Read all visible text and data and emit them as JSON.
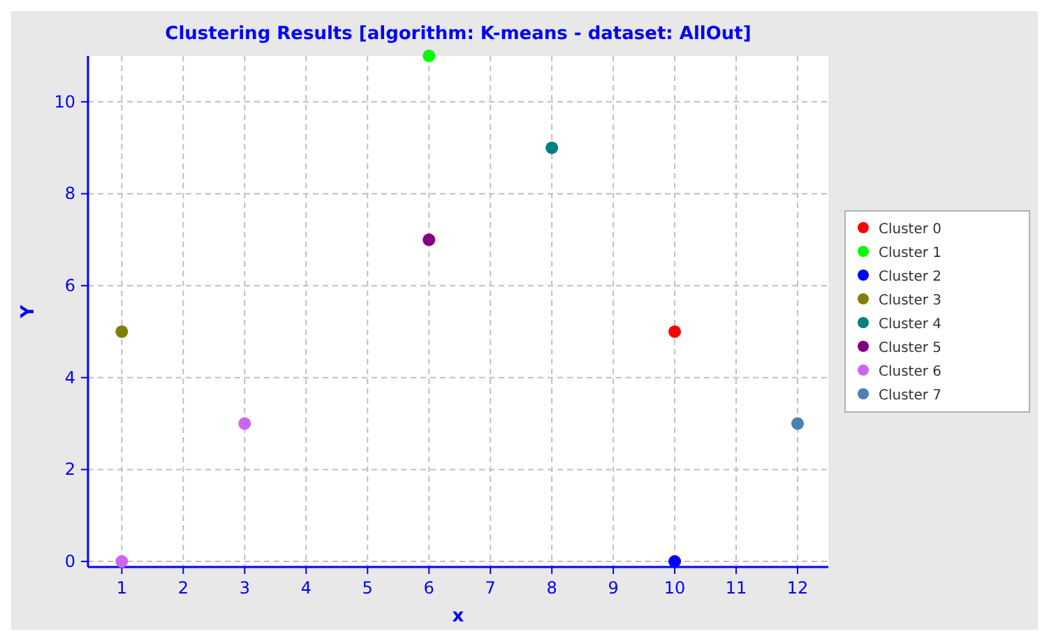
{
  "chart_data": {
    "type": "scatter",
    "title": "Clustering Results [algorithm: K-means - dataset: AllOut]",
    "xlabel": "x",
    "ylabel": "Y",
    "xlim": [
      0.45,
      12.5
    ],
    "xticks": [
      1,
      2,
      3,
      4,
      5,
      6,
      7,
      8,
      9,
      10,
      11,
      12
    ],
    "ylim": [
      -0.12,
      11
    ],
    "yticks": [
      0,
      2,
      4,
      6,
      8,
      10
    ],
    "grid": true,
    "legend": "right",
    "marker": "circle",
    "series": [
      {
        "name": "Cluster 0",
        "color": "#ff0000",
        "x": [
          10
        ],
        "values": [
          5
        ]
      },
      {
        "name": "Cluster 1",
        "color": "#00ff00",
        "x": [
          6
        ],
        "values": [
          11
        ]
      },
      {
        "name": "Cluster 2",
        "color": "#0000ff",
        "x": [
          10
        ],
        "values": [
          0
        ]
      },
      {
        "name": "Cluster 3",
        "color": "#808000",
        "x": [
          1
        ],
        "values": [
          5
        ]
      },
      {
        "name": "Cluster 4",
        "color": "#008080",
        "x": [
          8
        ],
        "values": [
          9
        ]
      },
      {
        "name": "Cluster 5",
        "color": "#800080",
        "x": [
          6
        ],
        "values": [
          7
        ]
      },
      {
        "name": "Cluster 6",
        "color": "#cc66ee",
        "x": [
          1,
          3
        ],
        "values": [
          0,
          3
        ]
      },
      {
        "name": "Cluster 7",
        "color": "#4682b4",
        "x": [
          12
        ],
        "values": [
          3
        ]
      }
    ]
  }
}
